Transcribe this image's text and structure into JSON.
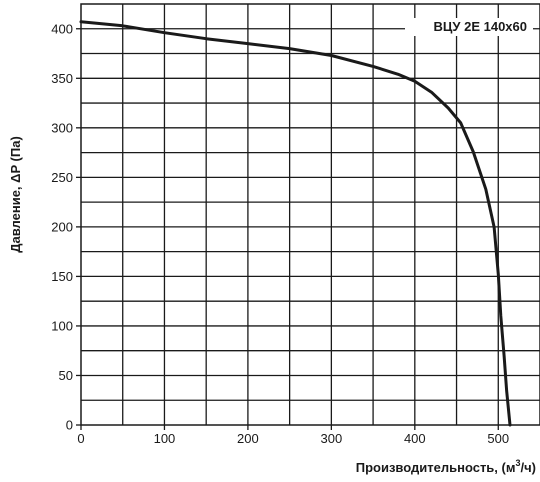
{
  "chart_data": {
    "type": "line",
    "xlabel": "Производительность, (м",
    "xlabel_sup": "3",
    "xlabel_tail": "/ч)",
    "ylabel": "Давление, ΔP (Па)",
    "xlim": [
      0,
      550
    ],
    "ylim": [
      0,
      425
    ],
    "x_ticks": [
      0,
      100,
      200,
      300,
      400,
      500
    ],
    "y_ticks": [
      0,
      50,
      100,
      150,
      200,
      250,
      300,
      350,
      400
    ],
    "grid": true,
    "legend_position": "top-right",
    "series": [
      {
        "name": "ВЦУ 2Е 140х60",
        "color": "#1a1a1a",
        "x": [
          0,
          50,
          100,
          150,
          200,
          250,
          300,
          350,
          380,
          400,
          420,
          440,
          455,
          470,
          485,
          495,
          500,
          503,
          507,
          510,
          514
        ],
        "y": [
          407,
          403,
          396,
          390,
          385,
          380,
          373,
          362,
          354,
          347,
          336,
          320,
          305,
          276,
          238,
          200,
          152,
          110,
          70,
          35,
          0
        ]
      }
    ]
  }
}
